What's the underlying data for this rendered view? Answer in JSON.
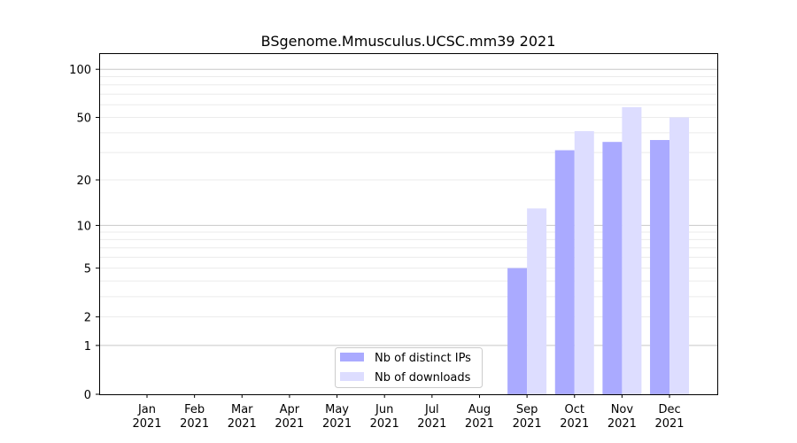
{
  "chart_data": {
    "type": "bar",
    "title": "BSgenome.Mmusculus.UCSC.mm39 2021",
    "xlabel": "",
    "ylabel": "",
    "y_scale": "symlog (log10(1+y))",
    "ylim": [
      0,
      120
    ],
    "y_ticks": [
      "0",
      "1",
      "2",
      "5",
      "10",
      "20",
      "50",
      "100"
    ],
    "y_tick_values": [
      0,
      1,
      2,
      5,
      10,
      20,
      50,
      100
    ],
    "grid": "horizontal major and minor",
    "categories": [
      [
        "Jan",
        "2021"
      ],
      [
        "Feb",
        "2021"
      ],
      [
        "Mar",
        "2021"
      ],
      [
        "Apr",
        "2021"
      ],
      [
        "May",
        "2021"
      ],
      [
        "Jun",
        "2021"
      ],
      [
        "Jul",
        "2021"
      ],
      [
        "Aug",
        "2021"
      ],
      [
        "Sep",
        "2021"
      ],
      [
        "Oct",
        "2021"
      ],
      [
        "Nov",
        "2021"
      ],
      [
        "Dec",
        "2021"
      ]
    ],
    "series": [
      {
        "name": "Nb of distinct IPs",
        "color": "#aaaaff",
        "values": [
          0,
          0,
          0,
          0,
          0,
          0,
          0,
          0,
          5,
          31,
          35,
          36
        ]
      },
      {
        "name": "Nb of downloads",
        "color": "#ddddff",
        "values": [
          0,
          0,
          0,
          0,
          0,
          0,
          0,
          0,
          13,
          41,
          58,
          50
        ]
      }
    ],
    "legend_position": "lower-center"
  }
}
